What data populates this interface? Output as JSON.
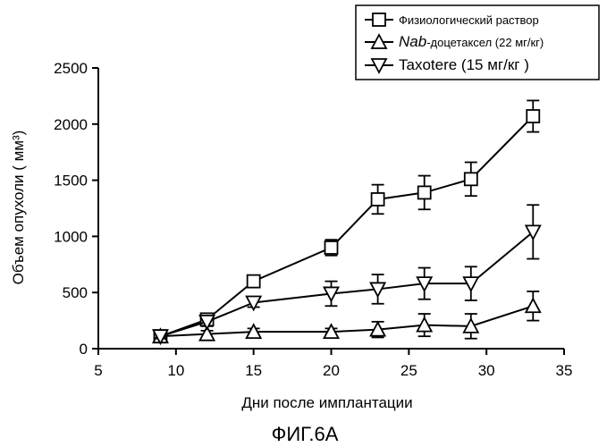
{
  "chart_data": {
    "type": "line",
    "title": "",
    "xlabel": "Дни после имплантации",
    "ylabel": "Объем опухоли  ( мм³)",
    "caption": "ФИГ.6А",
    "xlim": [
      5,
      35
    ],
    "ylim": [
      0,
      2500
    ],
    "xticks": [
      5,
      10,
      15,
      20,
      25,
      30,
      35
    ],
    "yticks": [
      0,
      500,
      1000,
      1500,
      2000,
      2500
    ],
    "grid": false,
    "legend_position": "top-right",
    "series": [
      {
        "name": "Физиологический раствор",
        "marker": "square",
        "x": [
          9,
          12,
          15,
          20,
          23,
          26,
          29,
          33
        ],
        "y": [
          110,
          260,
          600,
          900,
          1330,
          1390,
          1510,
          2070
        ],
        "err": [
          30,
          40,
          40,
          70,
          130,
          150,
          150,
          140
        ]
      },
      {
        "name": "Nab-доцетаксел (22 мг/кг)",
        "name_italic": "Nab",
        "name_rest": "-доцетаксел (22 мг/кг)",
        "marker": "triangle-up",
        "x": [
          9,
          12,
          15,
          20,
          23,
          26,
          29,
          33
        ],
        "y": [
          110,
          130,
          150,
          150,
          170,
          210,
          200,
          380
        ],
        "err": [
          20,
          30,
          30,
          30,
          70,
          100,
          110,
          130
        ]
      },
      {
        "name": "Taxotere (15  мг/кг  )",
        "marker": "triangle-down",
        "x": [
          9,
          12,
          15,
          20,
          23,
          26,
          29,
          33
        ],
        "y": [
          110,
          240,
          410,
          490,
          530,
          580,
          580,
          1040
        ],
        "err": [
          20,
          40,
          40,
          110,
          130,
          140,
          150,
          240
        ]
      }
    ]
  }
}
